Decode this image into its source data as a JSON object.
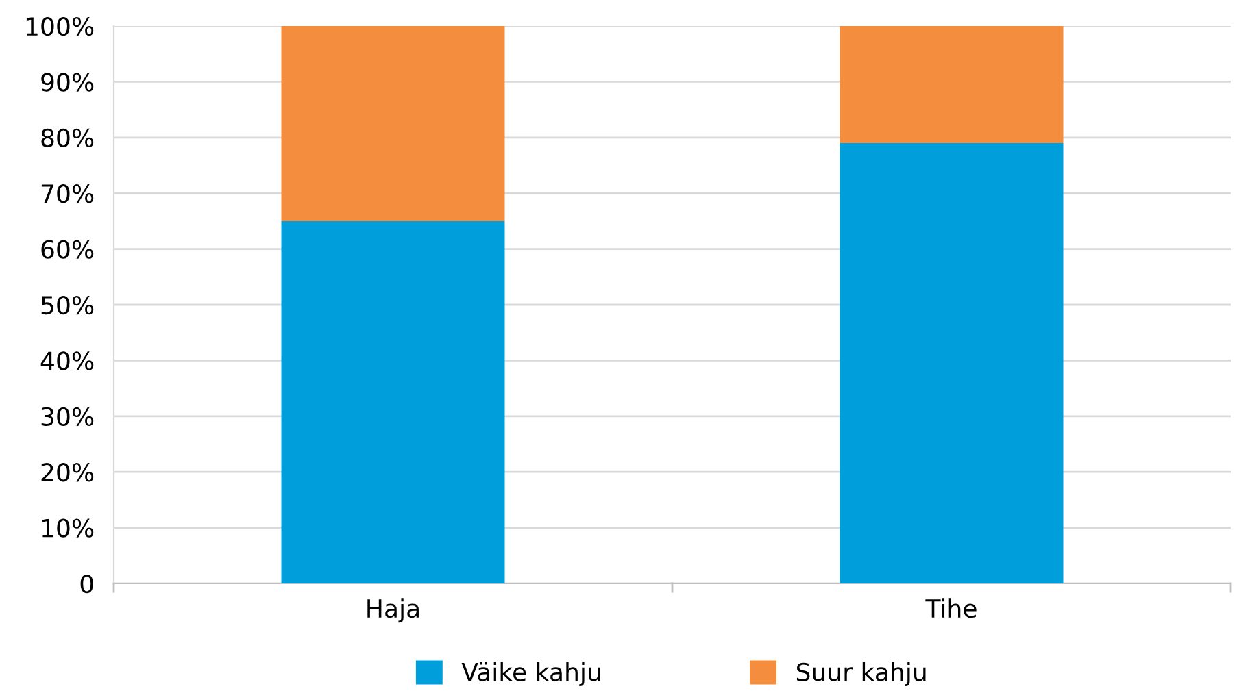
{
  "chart_data": {
    "type": "bar",
    "stacked": true,
    "categories": [
      "Haja",
      "Tihe"
    ],
    "series": [
      {
        "name": "Väike kahju",
        "color": "#009fdb",
        "values": [
          65,
          79
        ]
      },
      {
        "name": "Suur kahju",
        "color": "#f58d3f",
        "values": [
          35,
          21
        ]
      }
    ],
    "ylim": [
      0,
      100
    ],
    "yticks": [
      {
        "value": 0,
        "label": "0"
      },
      {
        "value": 10,
        "label": "10%"
      },
      {
        "value": 20,
        "label": "20%"
      },
      {
        "value": 30,
        "label": "30%"
      },
      {
        "value": 40,
        "label": "40%"
      },
      {
        "value": 50,
        "label": "50%"
      },
      {
        "value": 60,
        "label": "60%"
      },
      {
        "value": 70,
        "label": "70%"
      },
      {
        "value": 80,
        "label": "80%"
      },
      {
        "value": 90,
        "label": "90%"
      },
      {
        "value": 100,
        "label": "100%"
      }
    ],
    "grid": "y",
    "legend": "bottom"
  }
}
